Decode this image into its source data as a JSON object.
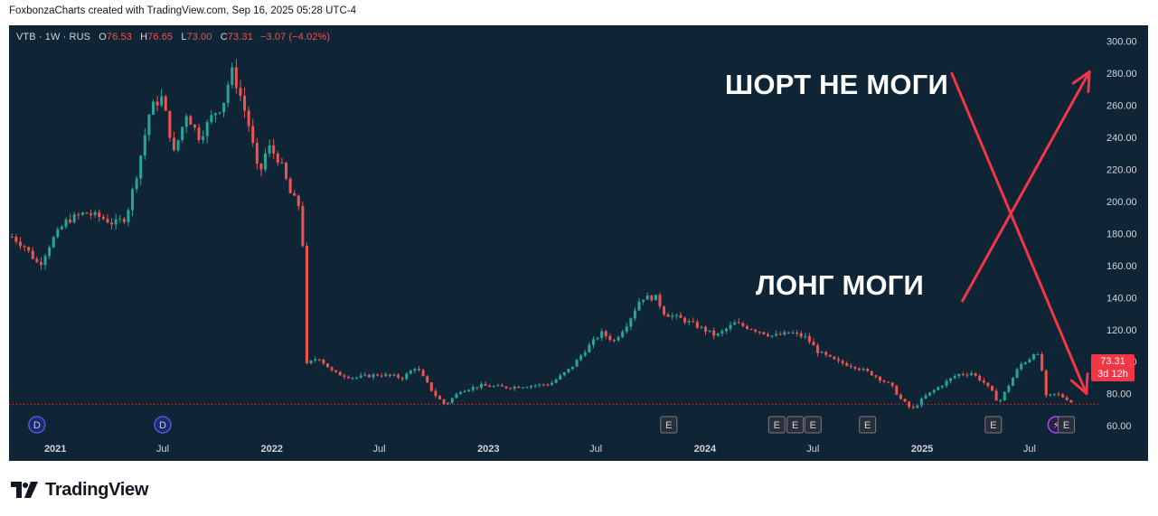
{
  "caption": "FoxbonzaCharts created with TradingView.com, Sep 16, 2025 05:28 UTC-4",
  "brand": {
    "name": "TradingView"
  },
  "symbol": {
    "title": "VTB · 1W · RUS",
    "open_label": "O",
    "open": "76.53",
    "high_label": "H",
    "high": "76.65",
    "low_label": "L",
    "low": "73.00",
    "close_label": "C",
    "close": "73.31",
    "change": "−3.07 (−4.02%)"
  },
  "price_tag": {
    "price": "73.31",
    "countdown": "3d 12h"
  },
  "annotations": {
    "short": "ШОРТ НЕ МОГИ",
    "long": "ЛОНГ МОГИ"
  },
  "colors": {
    "background": "#0f2535",
    "up": "#26a69a",
    "down": "#ef5350",
    "arrow": "#f23645",
    "axis_text": "#d1d4dc",
    "last_price_line": "#f23645"
  },
  "markers": [
    {
      "label": "D",
      "date": "2020-12-01",
      "kind": "dividend"
    },
    {
      "label": "D",
      "date": "2021-07-01",
      "kind": "dividend"
    },
    {
      "label": "E",
      "date": "2023-11-01",
      "kind": "earnings"
    },
    {
      "label": "E",
      "date": "2024-05-01",
      "kind": "earnings"
    },
    {
      "label": "E",
      "date": "2024-06-01",
      "kind": "earnings"
    },
    {
      "label": "E",
      "date": "2024-07-01",
      "kind": "earnings"
    },
    {
      "label": "E",
      "date": "2024-10-01",
      "kind": "earnings"
    },
    {
      "label": "E",
      "date": "2025-05-01",
      "kind": "earnings"
    },
    {
      "label": "⚡",
      "date": "2025-08-15",
      "kind": "event"
    },
    {
      "label": "E",
      "date": "2025-09-01",
      "kind": "earnings"
    }
  ],
  "chart_data": {
    "type": "candlestick",
    "x_axis": {
      "range": [
        "2020-10-15",
        "2025-10-25"
      ],
      "ticks": [
        {
          "date": "2021-01-01",
          "label": "2021",
          "bold": true
        },
        {
          "date": "2021-07-01",
          "label": "Jul",
          "bold": false
        },
        {
          "date": "2022-01-01",
          "label": "2022",
          "bold": true
        },
        {
          "date": "2022-07-01",
          "label": "Jul",
          "bold": false
        },
        {
          "date": "2023-01-01",
          "label": "2023",
          "bold": true
        },
        {
          "date": "2023-07-01",
          "label": "Jul",
          "bold": false
        },
        {
          "date": "2024-01-01",
          "label": "2024",
          "bold": true
        },
        {
          "date": "2024-07-01",
          "label": "Jul",
          "bold": false
        },
        {
          "date": "2025-01-01",
          "label": "2025",
          "bold": true
        },
        {
          "date": "2025-07-01",
          "label": "Jul",
          "bold": false
        }
      ]
    },
    "y_axis": {
      "range": [
        55,
        310
      ],
      "ticks": [
        "300.00",
        "280.00",
        "260.00",
        "240.00",
        "220.00",
        "200.00",
        "180.00",
        "160.00",
        "140.00",
        "120.00",
        "100.00",
        "80.00",
        "60.00"
      ],
      "tick_values": [
        300,
        280,
        260,
        240,
        220,
        200,
        180,
        160,
        140,
        120,
        100,
        80,
        60
      ]
    },
    "last_price": 73.31,
    "arrows": [
      {
        "from": [
          "2025-03-10",
          138
        ],
        "to": [
          "2025-10-10",
          281
        ]
      },
      {
        "from": [
          "2025-02-20",
          280
        ],
        "to": [
          "2025-10-05",
          80
        ]
      }
    ],
    "close_path": [
      [
        "2020-10-20",
        178
      ],
      [
        "2020-11-10",
        172
      ],
      [
        "2020-12-05",
        160
      ],
      [
        "2020-12-25",
        175
      ],
      [
        "2021-01-20",
        188
      ],
      [
        "2021-02-20",
        193
      ],
      [
        "2021-03-20",
        190
      ],
      [
        "2021-04-10",
        186
      ],
      [
        "2021-04-30",
        190
      ],
      [
        "2021-05-20",
        220
      ],
      [
        "2021-06-10",
        258
      ],
      [
        "2021-06-30",
        265
      ],
      [
        "2021-07-20",
        230
      ],
      [
        "2021-08-10",
        255
      ],
      [
        "2021-09-01",
        240
      ],
      [
        "2021-09-25",
        255
      ],
      [
        "2021-10-10",
        260
      ],
      [
        "2021-10-25",
        282
      ],
      [
        "2021-11-10",
        265
      ],
      [
        "2021-11-25",
        245
      ],
      [
        "2021-12-10",
        215
      ],
      [
        "2021-12-25",
        235
      ],
      [
        "2022-01-15",
        225
      ],
      [
        "2022-02-01",
        205
      ],
      [
        "2022-02-20",
        195
      ],
      [
        "2022-03-01",
        98
      ],
      [
        "2022-03-20",
        103
      ],
      [
        "2022-04-15",
        93
      ],
      [
        "2022-05-20",
        90
      ],
      [
        "2022-07-01",
        92
      ],
      [
        "2022-08-10",
        90
      ],
      [
        "2022-09-01",
        97
      ],
      [
        "2022-10-01",
        80
      ],
      [
        "2022-10-20",
        73
      ],
      [
        "2022-11-15",
        82
      ],
      [
        "2022-12-20",
        85
      ],
      [
        "2023-02-01",
        84
      ],
      [
        "2023-03-10",
        85
      ],
      [
        "2023-04-15",
        86
      ],
      [
        "2023-05-20",
        96
      ],
      [
        "2023-06-15",
        108
      ],
      [
        "2023-07-10",
        118
      ],
      [
        "2023-08-01",
        113
      ],
      [
        "2023-08-25",
        125
      ],
      [
        "2023-09-15",
        140
      ],
      [
        "2023-10-10",
        140
      ],
      [
        "2023-10-25",
        130
      ],
      [
        "2023-11-20",
        127
      ],
      [
        "2023-12-20",
        122
      ],
      [
        "2024-01-20",
        116
      ],
      [
        "2024-02-20",
        124
      ],
      [
        "2024-03-25",
        120
      ],
      [
        "2024-04-25",
        116
      ],
      [
        "2024-05-25",
        118
      ],
      [
        "2024-06-20",
        115
      ],
      [
        "2024-07-10",
        106
      ],
      [
        "2024-08-10",
        100
      ],
      [
        "2024-09-10",
        97
      ],
      [
        "2024-10-10",
        92
      ],
      [
        "2024-11-10",
        85
      ],
      [
        "2024-11-25",
        77
      ],
      [
        "2024-12-15",
        70
      ],
      [
        "2025-01-05",
        78
      ],
      [
        "2025-02-01",
        85
      ],
      [
        "2025-03-01",
        92
      ],
      [
        "2025-03-25",
        93
      ],
      [
        "2025-04-15",
        87
      ],
      [
        "2025-05-01",
        80
      ],
      [
        "2025-05-10",
        74
      ],
      [
        "2025-05-25",
        84
      ],
      [
        "2025-06-15",
        98
      ],
      [
        "2025-07-01",
        102
      ],
      [
        "2025-07-10",
        107
      ],
      [
        "2025-07-20",
        100
      ],
      [
        "2025-07-28",
        78
      ],
      [
        "2025-08-15",
        80
      ],
      [
        "2025-09-01",
        77
      ],
      [
        "2025-09-15",
        73.3
      ]
    ]
  }
}
